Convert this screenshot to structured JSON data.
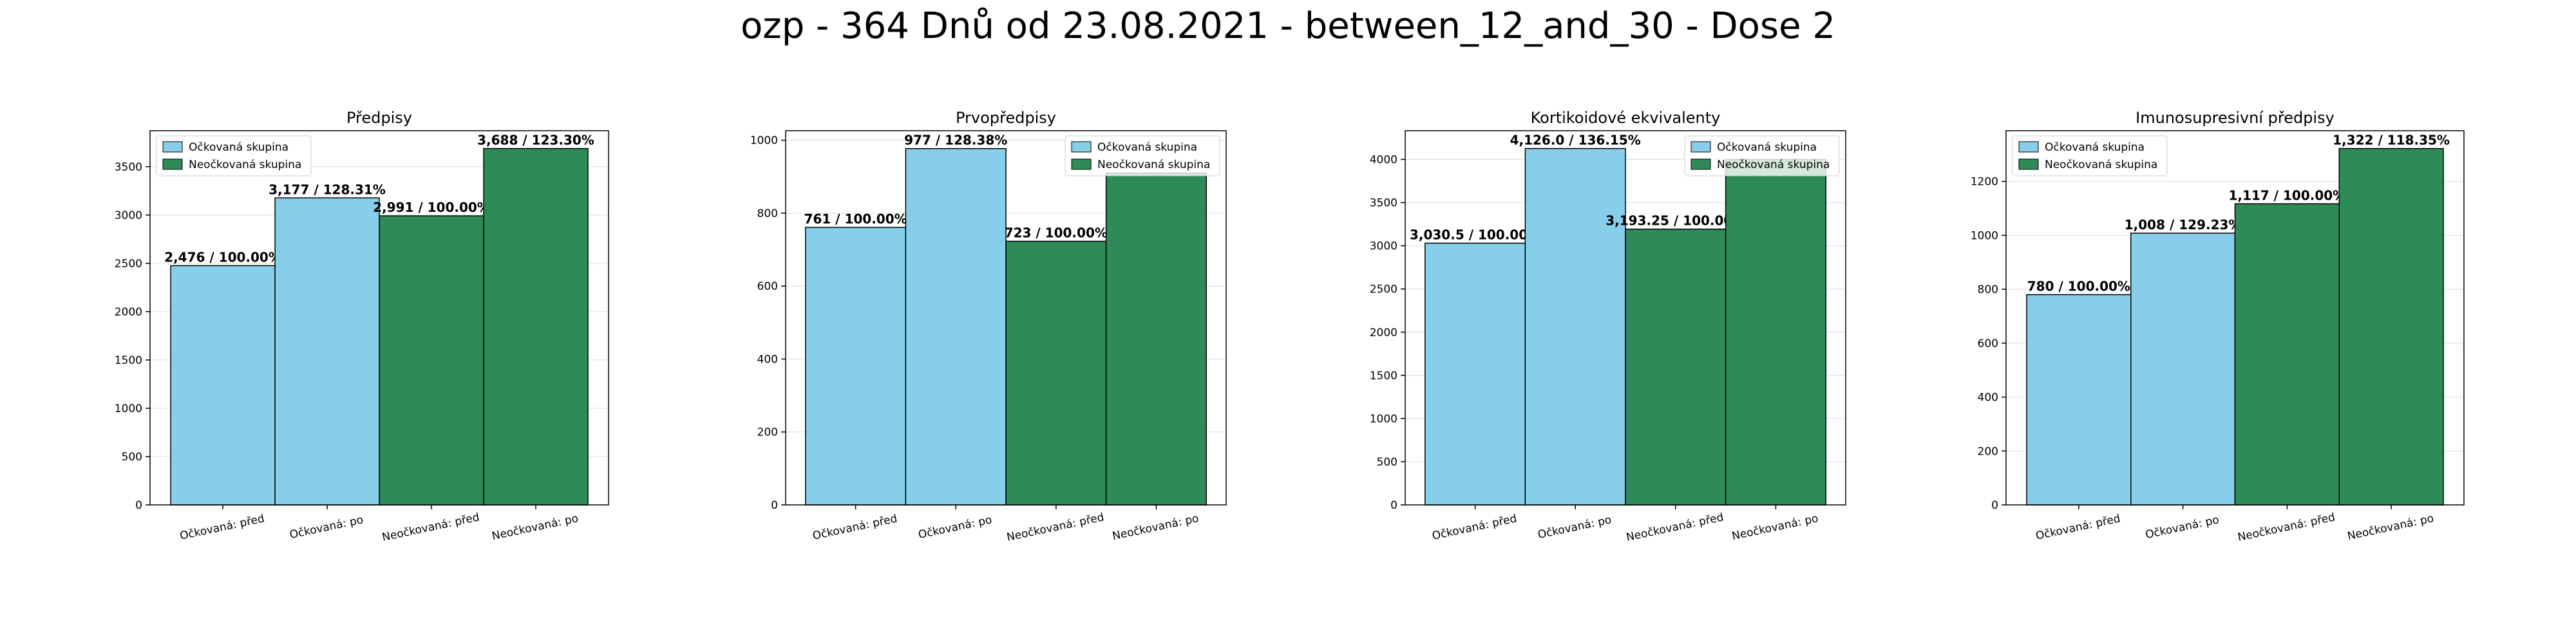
{
  "suptitle": "ozp - 364 Dnů od 23.08.2021 - between_12_and_30 - Dose 2",
  "colors": {
    "vaccinated": "#87CEEB",
    "unvaccinated": "#2E8B57",
    "edge": "#000000",
    "grid": "#dddddd"
  },
  "legend_labels": [
    "Očkovaná skupina",
    "Neočkovaná skupina"
  ],
  "chart_data": [
    {
      "type": "bar",
      "title": "Předpisy",
      "categories": [
        "Očkovaná: před",
        "Očkovaná: po",
        "Neočkovaná: před",
        "Neočkovaná: po"
      ],
      "values": [
        2476,
        3177,
        2991,
        3688
      ],
      "labels": [
        "2,476 / 100.00%",
        "3,177 / 128.31%",
        "2,991 / 100.00%",
        "3,688 / 123.30%"
      ],
      "ylim": [
        0,
        3872
      ],
      "yticks": [
        0,
        500,
        1000,
        1500,
        2000,
        2500,
        3000,
        3500
      ],
      "ytick_labels": [
        "0",
        "500",
        "1000",
        "1500",
        "2000",
        "2500",
        "3000",
        "3500"
      ],
      "legend": "top-left",
      "grid": true
    },
    {
      "type": "bar",
      "title": "Prvopředpisy",
      "categories": [
        "Očkovaná: před",
        "Očkovaná: po",
        "Neočkovaná: před",
        "Neočkovaná: po"
      ],
      "values": [
        761,
        977,
        723,
        910
      ],
      "labels": [
        "761 / 100.00%",
        "977 / 128.38%",
        "723 / 100.00%",
        ""
      ],
      "ylim": [
        0,
        1026
      ],
      "yticks": [
        0,
        200,
        400,
        600,
        800,
        1000
      ],
      "ytick_labels": [
        "0",
        "200",
        "400",
        "600",
        "800",
        "1000"
      ],
      "legend": "top-right",
      "grid": true
    },
    {
      "type": "bar",
      "title": "Kortikoidové ekvivalenty",
      "categories": [
        "Očkovaná: před",
        "Očkovaná: po",
        "Neočkovaná: před",
        "Neočkovaná: po"
      ],
      "values": [
        3030.5,
        4126.0,
        3193.25,
        4000
      ],
      "labels": [
        "3,030.5 / 100.00%",
        "4,126.0 / 136.15%",
        "3,193.25 / 100.00%",
        ""
      ],
      "ylim": [
        0,
        4332
      ],
      "yticks": [
        0,
        500,
        1000,
        1500,
        2000,
        2500,
        3000,
        3500,
        4000
      ],
      "ytick_labels": [
        "0",
        "500",
        "1000",
        "1500",
        "2000",
        "2500",
        "3000",
        "3500",
        "4000"
      ],
      "legend": "top-right",
      "grid": true
    },
    {
      "type": "bar",
      "title": "Imunosupresivní předpisy",
      "categories": [
        "Očkovaná: před",
        "Očkovaná: po",
        "Neočkovaná: před",
        "Neočkovaná: po"
      ],
      "values": [
        780,
        1008,
        1117,
        1322
      ],
      "labels": [
        "780 / 100.00%",
        "1,008 / 129.23%",
        "1,117 / 100.00%",
        "1,322 / 118.35%"
      ],
      "ylim": [
        0,
        1388
      ],
      "yticks": [
        0,
        200,
        400,
        600,
        800,
        1000,
        1200
      ],
      "ytick_labels": [
        "0",
        "200",
        "400",
        "600",
        "800",
        "1000",
        "1200"
      ],
      "legend": "top-left",
      "grid": true
    }
  ]
}
